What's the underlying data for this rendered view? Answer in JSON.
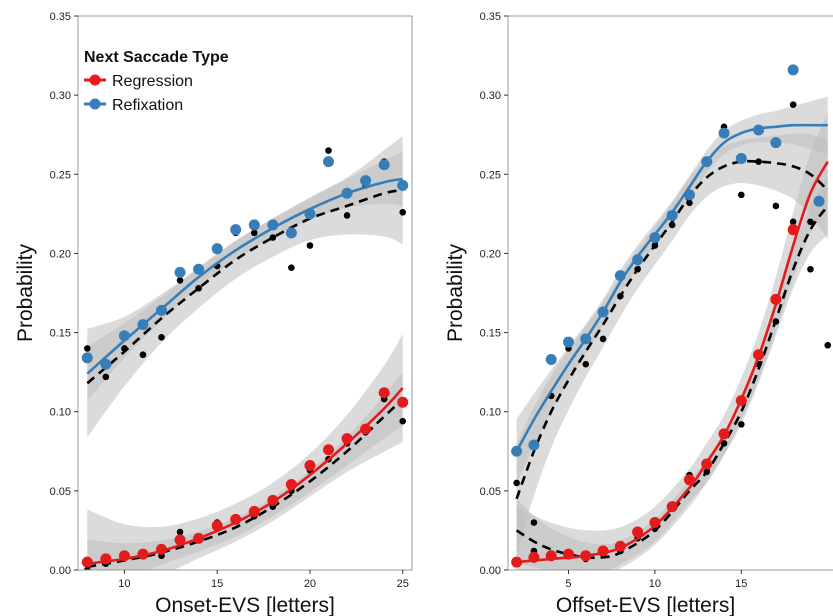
{
  "colors": {
    "regression": "#e41a1c",
    "refixation": "#377eb8",
    "black_points": "#000000",
    "band": "#bdbdbd"
  },
  "legend": {
    "title": "Next Saccade Type",
    "items": [
      {
        "label": "Regression",
        "color": "#e41a1c"
      },
      {
        "label": "Refixation",
        "color": "#377eb8"
      }
    ]
  },
  "chart_data": [
    {
      "type": "scatter",
      "xlabel": "Onset-EVS [letters]",
      "ylabel": "Probability",
      "xlim": [
        7.5,
        25.5
      ],
      "ylim": [
        0,
        0.35
      ],
      "xticks": [
        10,
        15,
        20,
        25
      ],
      "yticks": [
        "0.00",
        "0.05",
        "0.10",
        "0.15",
        "0.20",
        "0.25",
        "0.30",
        "0.35"
      ],
      "series": [
        {
          "name": "Regression",
          "color": "#e41a1c",
          "x": [
            8,
            9,
            10,
            11,
            12,
            13,
            14,
            15,
            16,
            17,
            18,
            19,
            20,
            21,
            22,
            23,
            24,
            25
          ],
          "y": [
            0.005,
            0.007,
            0.009,
            0.01,
            0.013,
            0.019,
            0.02,
            0.028,
            0.032,
            0.037,
            0.044,
            0.054,
            0.066,
            0.076,
            0.083,
            0.089,
            0.112,
            0.106
          ],
          "fit": [
            [
              8,
              0.004
            ],
            [
              10,
              0.007
            ],
            [
              12,
              0.012
            ],
            [
              14,
              0.02
            ],
            [
              16,
              0.03
            ],
            [
              18,
              0.043
            ],
            [
              20,
              0.06
            ],
            [
              22,
              0.08
            ],
            [
              24,
              0.102
            ],
            [
              25,
              0.115
            ]
          ]
        },
        {
          "name": "Refixation",
          "color": "#377eb8",
          "x": [
            8,
            9,
            10,
            11,
            12,
            13,
            14,
            15,
            16,
            17,
            18,
            19,
            20,
            21,
            22,
            23,
            24,
            25
          ],
          "y": [
            0.134,
            0.13,
            0.148,
            0.155,
            0.164,
            0.188,
            0.19,
            0.203,
            0.215,
            0.218,
            0.218,
            0.213,
            0.225,
            0.258,
            0.238,
            0.246,
            0.256,
            0.243
          ],
          "fit": [
            [
              8,
              0.124
            ],
            [
              10,
              0.145
            ],
            [
              12,
              0.165
            ],
            [
              14,
              0.185
            ],
            [
              16,
              0.202
            ],
            [
              18,
              0.216
            ],
            [
              20,
              0.228
            ],
            [
              22,
              0.238
            ],
            [
              24,
              0.245
            ],
            [
              25,
              0.247
            ]
          ]
        },
        {
          "name": "",
          "color": "#000000",
          "x": [
            8,
            9,
            10,
            11,
            12,
            13,
            14,
            15,
            16,
            17,
            18,
            19,
            20,
            21,
            22,
            23,
            24,
            25,
            8,
            9,
            10,
            11,
            12,
            13,
            14,
            15,
            16,
            17,
            18,
            19,
            20,
            21,
            22,
            23,
            24,
            25
          ],
          "y": [
            0.14,
            0.122,
            0.14,
            0.136,
            0.147,
            0.183,
            0.178,
            0.192,
            0.213,
            0.213,
            0.21,
            0.191,
            0.205,
            0.265,
            0.224,
            0.243,
            0.258,
            0.226,
            0.0,
            0.004,
            0.008,
            0.01,
            0.009,
            0.024,
            0.02,
            0.03,
            0.031,
            0.034,
            0.04,
            0.05,
            0.063,
            0.07,
            0.08,
            0.087,
            0.108,
            0.094
          ]
        }
      ],
      "dashed_fits": [
        [
          [
            8,
            0.118
          ],
          [
            10,
            0.138
          ],
          [
            12,
            0.159
          ],
          [
            14,
            0.178
          ],
          [
            16,
            0.196
          ],
          [
            18,
            0.21
          ],
          [
            20,
            0.222
          ],
          [
            22,
            0.23
          ],
          [
            24,
            0.238
          ],
          [
            25,
            0.24
          ]
        ],
        [
          [
            8,
            0.002
          ],
          [
            10,
            0.006
          ],
          [
            12,
            0.011
          ],
          [
            14,
            0.018
          ],
          [
            16,
            0.027
          ],
          [
            18,
            0.04
          ],
          [
            20,
            0.056
          ],
          [
            22,
            0.075
          ],
          [
            24,
            0.097
          ],
          [
            25,
            0.108
          ]
        ]
      ]
    },
    {
      "type": "scatter",
      "xlabel": "Offset-EVS [letters]",
      "ylabel": "Probability",
      "xlim": [
        1.5,
        21
      ],
      "ylim": [
        0,
        0.35
      ],
      "xticks": [
        5,
        10,
        15
      ],
      "yticks": [
        "0.00",
        "0.05",
        "0.10",
        "0.15",
        "0.20",
        "0.25",
        "0.30",
        "0.35"
      ],
      "series": [
        {
          "name": "Regression",
          "color": "#e41a1c",
          "x": [
            2,
            3,
            4,
            5,
            6,
            7,
            8,
            9,
            10,
            11,
            12,
            13,
            14,
            15,
            16,
            17,
            18
          ],
          "y": [
            0.005,
            0.008,
            0.009,
            0.01,
            0.009,
            0.012,
            0.015,
            0.024,
            0.03,
            0.04,
            0.057,
            0.067,
            0.086,
            0.107,
            0.136,
            0.171,
            0.215
          ],
          "fit": [
            [
              2,
              0.005
            ],
            [
              4,
              0.007
            ],
            [
              6,
              0.009
            ],
            [
              8,
              0.014
            ],
            [
              10,
              0.028
            ],
            [
              12,
              0.052
            ],
            [
              13,
              0.068
            ],
            [
              14,
              0.085
            ],
            [
              15,
              0.108
            ],
            [
              16,
              0.135
            ],
            [
              17,
              0.168
            ],
            [
              18,
              0.205
            ],
            [
              19,
              0.238
            ],
            [
              20,
              0.258
            ]
          ]
        },
        {
          "name": "Refixation",
          "color": "#377eb8",
          "x": [
            2,
            3,
            4,
            5,
            6,
            7,
            8,
            9,
            10,
            11,
            12,
            13,
            14,
            15,
            16,
            17,
            18,
            19.5
          ],
          "y": [
            0.075,
            0.079,
            0.133,
            0.144,
            0.146,
            0.163,
            0.186,
            0.196,
            0.21,
            0.224,
            0.237,
            0.258,
            0.276,
            0.26,
            0.278,
            0.27,
            0.316,
            0.233
          ],
          "fit": [
            [
              2,
              0.075
            ],
            [
              3,
              0.095
            ],
            [
              4,
              0.113
            ],
            [
              5,
              0.13
            ],
            [
              6,
              0.146
            ],
            [
              7,
              0.163
            ],
            [
              8,
              0.182
            ],
            [
              9,
              0.198
            ],
            [
              10,
              0.212
            ],
            [
              11,
              0.226
            ],
            [
              12,
              0.242
            ],
            [
              13,
              0.258
            ],
            [
              14,
              0.27
            ],
            [
              15,
              0.276
            ],
            [
              16,
              0.279
            ],
            [
              17,
              0.28
            ],
            [
              18,
              0.281
            ],
            [
              20,
              0.281
            ]
          ]
        },
        {
          "name": "",
          "color": "#000000",
          "x": [
            2,
            3,
            4,
            5,
            6,
            7,
            8,
            9,
            10,
            11,
            12,
            13,
            14,
            15,
            16,
            17,
            18,
            19,
            20,
            2,
            3,
            4,
            5,
            6,
            7,
            8,
            9,
            10,
            11,
            12,
            13,
            14,
            15,
            16,
            17,
            18,
            19
          ],
          "y": [
            0.055,
            0.03,
            0.11,
            0.14,
            0.13,
            0.146,
            0.173,
            0.19,
            0.205,
            0.218,
            0.232,
            0.257,
            0.28,
            0.237,
            0.258,
            0.23,
            0.294,
            0.22,
            0.142,
            0.005,
            0.012,
            0.009,
            0.01,
            0.007,
            0.01,
            0.012,
            0.02,
            0.026,
            0.04,
            0.06,
            0.062,
            0.08,
            0.092,
            0.13,
            0.157,
            0.22,
            0.19
          ]
        }
      ],
      "dashed_fits": [
        [
          [
            2,
            0.045
          ],
          [
            3,
            0.075
          ],
          [
            4,
            0.1
          ],
          [
            5,
            0.12
          ],
          [
            6,
            0.138
          ],
          [
            7,
            0.155
          ],
          [
            8,
            0.173
          ],
          [
            9,
            0.19
          ],
          [
            10,
            0.205
          ],
          [
            11,
            0.22
          ],
          [
            12,
            0.236
          ],
          [
            13,
            0.248
          ],
          [
            14,
            0.255
          ],
          [
            15,
            0.258
          ],
          [
            16,
            0.258
          ],
          [
            17,
            0.257
          ],
          [
            18,
            0.255
          ],
          [
            19,
            0.25
          ],
          [
            20,
            0.24
          ]
        ],
        [
          [
            2,
            0.025
          ],
          [
            3,
            0.018
          ],
          [
            4,
            0.013
          ],
          [
            5,
            0.01
          ],
          [
            6,
            0.008
          ],
          [
            7,
            0.008
          ],
          [
            8,
            0.011
          ],
          [
            10,
            0.025
          ],
          [
            12,
            0.05
          ],
          [
            13,
            0.062
          ],
          [
            14,
            0.08
          ],
          [
            15,
            0.1
          ],
          [
            16,
            0.127
          ],
          [
            17,
            0.158
          ],
          [
            18,
            0.19
          ],
          [
            19,
            0.215
          ],
          [
            20,
            0.23
          ]
        ]
      ]
    }
  ]
}
